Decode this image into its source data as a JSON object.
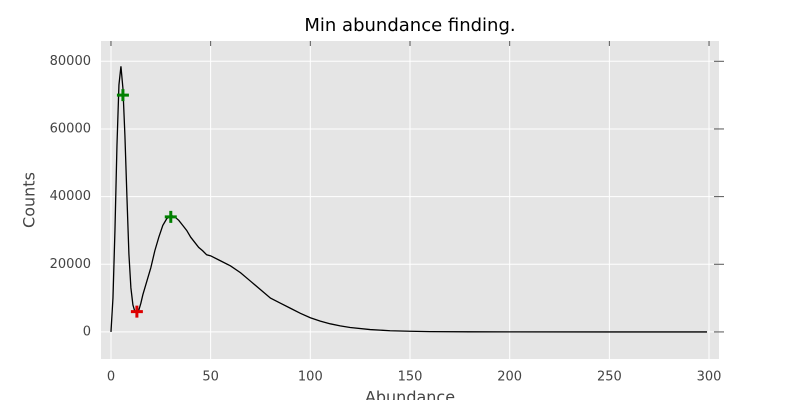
{
  "chart_data": {
    "type": "line",
    "title": "Min abundance finding.",
    "x_label": "Abundance",
    "y_label": "Counts",
    "x": [
      0,
      1,
      2,
      3,
      4,
      5,
      6,
      7,
      8,
      9,
      10,
      11,
      12,
      13,
      14,
      15,
      16,
      18,
      20,
      22,
      24,
      26,
      28,
      30,
      32,
      34,
      36,
      38,
      40,
      42,
      44,
      46,
      48,
      50,
      55,
      60,
      65,
      70,
      75,
      80,
      85,
      90,
      95,
      100,
      105,
      110,
      115,
      120,
      130,
      140,
      150,
      160,
      180,
      200,
      250,
      299
    ],
    "values": [
      0,
      10000,
      30000,
      55000,
      73000,
      78500,
      72000,
      58000,
      40000,
      23000,
      13000,
      8000,
      6000,
      5800,
      6500,
      8500,
      11000,
      15000,
      19000,
      24000,
      28000,
      31500,
      33500,
      34500,
      34000,
      33000,
      31500,
      30000,
      28000,
      26500,
      25000,
      24000,
      22800,
      22500,
      21000,
      19500,
      17500,
      15000,
      12500,
      10000,
      8500,
      7000,
      5500,
      4200,
      3200,
      2400,
      1800,
      1300,
      700,
      350,
      200,
      100,
      40,
      10,
      0,
      0
    ],
    "color": "#000000",
    "markers": [
      {
        "x": [
          6,
          30
        ],
        "values": [
          70000,
          34000
        ],
        "color": "#008000"
      },
      {
        "x": [
          13
        ],
        "values": [
          6000
        ],
        "color": "#dd0000"
      }
    ],
    "xlim": [
      -5,
      305
    ],
    "ylim": [
      -8000,
      86000
    ],
    "xticks": [
      0,
      50,
      100,
      150,
      200,
      250,
      300
    ],
    "yticks": [
      0,
      20000,
      40000,
      60000,
      80000
    ],
    "grid": true
  }
}
